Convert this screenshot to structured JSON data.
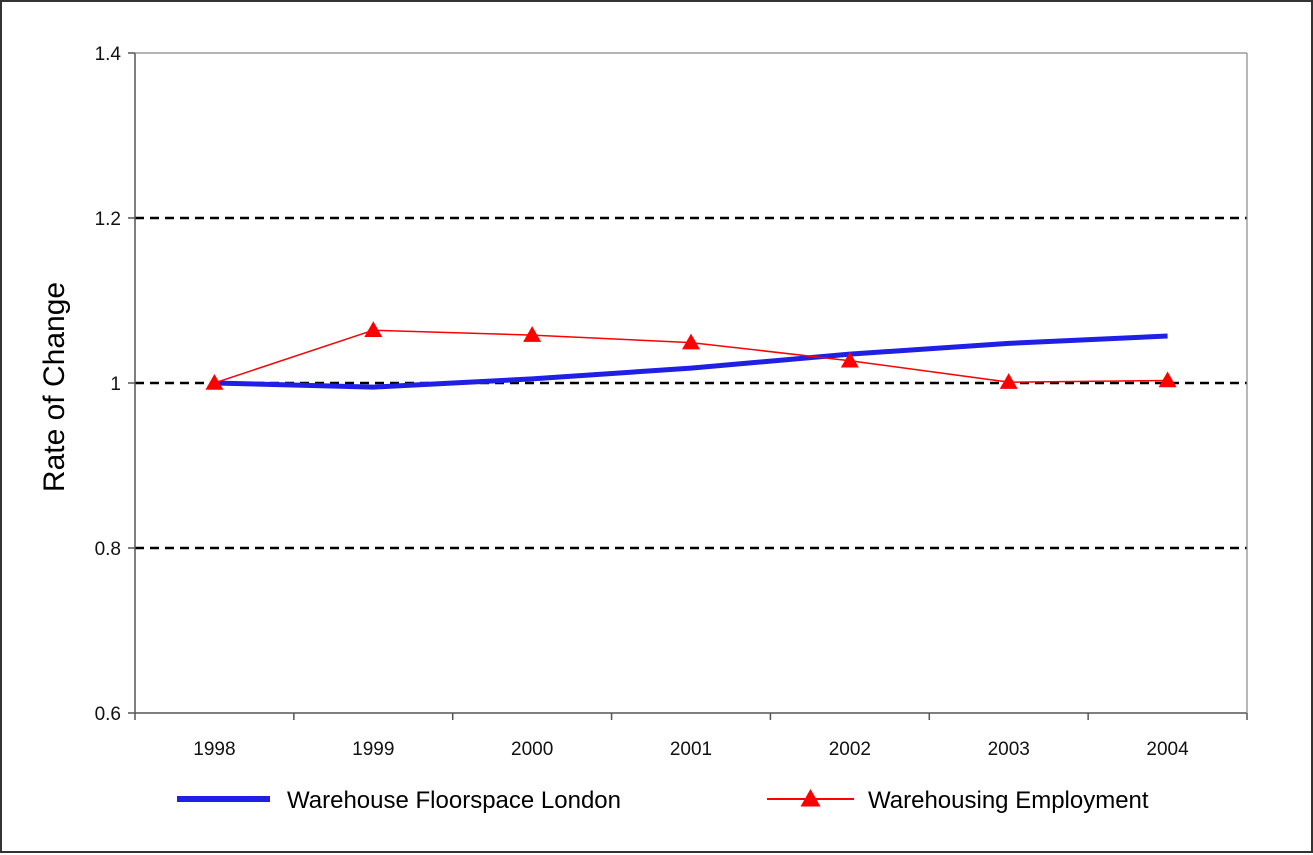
{
  "chart_data": {
    "type": "line",
    "title": "",
    "xlabel": "",
    "ylabel": "Rate of Change",
    "categories": [
      "1998",
      "1999",
      "2000",
      "2001",
      "2002",
      "2003",
      "2004"
    ],
    "ylim": [
      0.6,
      1.4
    ],
    "yticks": [
      "0.6",
      "0.8",
      "1",
      "1.2",
      "1.4"
    ],
    "grid": "dashed horizontal at 0.8, 1, 1.2",
    "legend_position": "bottom",
    "series": [
      {
        "name": "Warehouse Floorspace London",
        "color": "#1f1fe6",
        "marker": "none",
        "values": [
          1.0,
          0.995,
          1.005,
          1.018,
          1.035,
          1.048,
          1.057
        ]
      },
      {
        "name": "Warehousing Employment",
        "color": "#ff0000",
        "marker": "triangle",
        "values": [
          1.0,
          1.064,
          1.058,
          1.049,
          1.027,
          1.001,
          1.003
        ]
      }
    ]
  }
}
